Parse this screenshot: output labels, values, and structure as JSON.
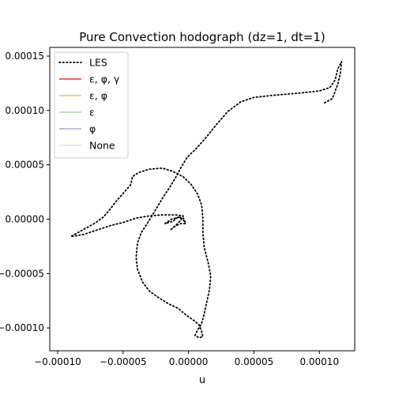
{
  "chart_data": {
    "type": "line",
    "title": "Pure Convection hodograph (dz=1, dt=1)",
    "xlabel": "u",
    "ylabel": "",
    "xlim": [
      -0.000106,
      0.000127
    ],
    "ylim": [
      -0.000121,
      0.000158
    ],
    "x_ticks": [
      {
        "value": -0.0001,
        "label": "−0.00010"
      },
      {
        "value": -5e-05,
        "label": "−0.00005"
      },
      {
        "value": 0.0,
        "label": "0.00000"
      },
      {
        "value": 5e-05,
        "label": "0.00005"
      },
      {
        "value": 0.0001,
        "label": "0.00010"
      }
    ],
    "y_ticks": [
      {
        "value": -0.0001,
        "label": "−0.00010"
      },
      {
        "value": -5e-05,
        "label": "−0.00005"
      },
      {
        "value": 0.0,
        "label": "0.00000"
      },
      {
        "value": 5e-05,
        "label": "0.00005"
      },
      {
        "value": 0.0001,
        "label": "0.00010"
      },
      {
        "value": 0.00015,
        "label": "0.00015"
      }
    ],
    "grid": false,
    "legend_position": "upper-left",
    "legend": [
      {
        "label": "LES",
        "color": "#000000",
        "style": "dotted"
      },
      {
        "label": "ε, φ, γ",
        "color": "#e8302a",
        "style": "solid"
      },
      {
        "label": "ε, φ",
        "color": "#f8c24a",
        "style": "solid"
      },
      {
        "label": "ε",
        "color": "#a9d6a5",
        "style": "solid"
      },
      {
        "label": "φ",
        "color": "#a9a9d8",
        "style": "solid"
      },
      {
        "label": "None",
        "color": "#dcdcdc",
        "style": "solid"
      }
    ],
    "series": [
      {
        "name": "LES",
        "color": "#000000",
        "points": [
          [
            0.000104,
            0.000107
          ],
          [
            0.00011,
            0.000111
          ],
          [
            0.000114,
            0.000124
          ],
          [
            0.000116,
            0.000134
          ],
          [
            0.000117,
            0.000145
          ],
          [
            0.000114,
            0.000138
          ],
          [
            0.000112,
            0.000128
          ],
          [
            0.000108,
            0.000121
          ],
          [
            0.0001,
            0.000118
          ],
          [
            8.5e-05,
            0.000116
          ],
          [
            6.5e-05,
            0.000114
          ],
          [
            5e-05,
            0.000112
          ],
          [
            4e-05,
            0.000108
          ],
          [
            3e-05,
            9.9e-05
          ],
          [
            2.2e-05,
            8.8e-05
          ],
          [
            1.4e-05,
            7.6e-05
          ],
          [
            6e-06,
            6.5e-05
          ],
          [
            -1e-06,
            5.7e-05
          ],
          [
            -6e-06,
            4.7e-05
          ],
          [
            -1e-05,
            3.8e-05
          ],
          [
            -1.4e-05,
            3e-05
          ],
          [
            -1.9e-05,
            2.1e-05
          ],
          [
            -2.3e-05,
            1.3e-05
          ],
          [
            -2.7e-05,
            5e-06
          ],
          [
            -3.1e-05,
            -3e-06
          ],
          [
            -3.6e-05,
            -1.2e-05
          ],
          [
            -3.9e-05,
            -2.2e-05
          ],
          [
            -4e-05,
            -3.5e-05
          ],
          [
            -3.9e-05,
            -4.6e-05
          ],
          [
            -3.5e-05,
            -5.8e-05
          ],
          [
            -3e-05,
            -6.6e-05
          ],
          [
            -2.3e-05,
            -7.2e-05
          ],
          [
            -1.5e-05,
            -7.8e-05
          ],
          [
            -8e-06,
            -8.2e-05
          ],
          [
            -2e-06,
            -8.8e-05
          ],
          [
            4e-06,
            -9.3e-05
          ],
          [
            8e-06,
            -9.7e-05
          ],
          [
            1e-05,
            -0.000103
          ],
          [
            1.1e-05,
            -0.000108
          ],
          [
            8e-06,
            -0.000109
          ],
          [
            5e-06,
            -0.000107
          ],
          [
            7e-06,
            -0.000102
          ],
          [
            1e-05,
            -9.6e-05
          ],
          [
            1.2e-05,
            -8.7e-05
          ],
          [
            1.4e-05,
            -7.6e-05
          ],
          [
            1.6e-05,
            -6.5e-05
          ],
          [
            1.7e-05,
            -5.2e-05
          ],
          [
            1.5e-05,
            -4e-05
          ],
          [
            1.2e-05,
            -2.6e-05
          ],
          [
            1.1e-05,
            -1.2e-05
          ],
          [
            1.1e-05,
            1e-06
          ],
          [
            1e-05,
            1.3e-05
          ],
          [
            7e-06,
            2.3e-05
          ],
          [
            2e-06,
            3.2e-05
          ],
          [
            -4e-06,
            3.9e-05
          ],
          [
            -1.2e-05,
            4.4e-05
          ],
          [
            -2e-05,
            4.7e-05
          ],
          [
            -3e-05,
            4.6e-05
          ],
          [
            -3.8e-05,
            4.3e-05
          ],
          [
            -4.3e-05,
            3.9e-05
          ],
          [
            -4.4e-05,
            3.2e-05
          ],
          [
            -4.9e-05,
            2.5e-05
          ],
          [
            -5.5e-05,
            1.7e-05
          ],
          [
            -6e-05,
            9e-06
          ],
          [
            -6.5e-05,
            2e-06
          ],
          [
            -7.2e-05,
            -4e-06
          ],
          [
            -8.1e-05,
            -1e-05
          ],
          [
            -9e-05,
            -1.6e-05
          ],
          [
            -8e-05,
            -1.4e-05
          ],
          [
            -7e-05,
            -1e-05
          ],
          [
            -6e-05,
            -6e-06
          ],
          [
            -5e-05,
            -3e-06
          ],
          [
            -4e-05,
            1e-06
          ],
          [
            -3e-05,
            3e-06
          ],
          [
            -2e-05,
            4e-06
          ],
          [
            -1e-05,
            4e-06
          ],
          [
            -4e-06,
            3e-06
          ],
          [
            -6e-06,
            -1e-06
          ],
          [
            -1e-05,
            -6e-06
          ],
          [
            -1.4e-05,
            -1e-05
          ],
          [
            -1.1e-05,
            -7e-06
          ],
          [
            -6e-06,
            -4e-06
          ],
          [
            -2e-06,
            -4e-06
          ],
          [
            -4e-06,
            1e-06
          ],
          [
            -8e-06,
            2e-06
          ],
          [
            -1.2e-05,
            -2e-06
          ],
          [
            -1.8e-05,
            -4e-06
          ],
          [
            -1.3e-05,
            0.0
          ],
          [
            -7e-06,
            2e-06
          ],
          [
            -3e-06,
            -2e-06
          ]
        ]
      }
    ]
  }
}
